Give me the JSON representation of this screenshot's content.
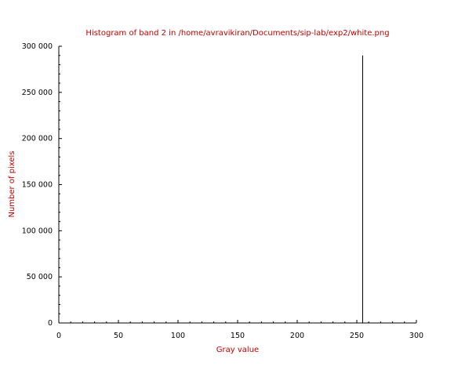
{
  "chart_data": {
    "type": "bar",
    "title": "Histogram of band 2 in /home/avravikiran/Documents/sip-lab/exp2/white.png",
    "xlabel": "Gray value",
    "ylabel": "Number of pixels",
    "xlim": [
      0,
      300
    ],
    "ylim": [
      0,
      300000
    ],
    "x_ticks": [
      0,
      50,
      100,
      150,
      200,
      250,
      300
    ],
    "x_tick_labels": [
      "0",
      "50",
      "100",
      "150",
      "200",
      "250",
      "300"
    ],
    "y_ticks": [
      0,
      50000,
      100000,
      150000,
      200000,
      250000,
      300000
    ],
    "y_tick_labels": [
      "0",
      "50 000",
      "100 000",
      "150 000",
      "200 000",
      "250 000",
      "300 000"
    ],
    "grid": false,
    "legend": "none",
    "bars": [
      {
        "x": 255,
        "y": 290000
      }
    ],
    "colors": {
      "title": "#c00000",
      "axis_label": "#c00000",
      "bar": "#000000",
      "axis": "#000000"
    }
  }
}
